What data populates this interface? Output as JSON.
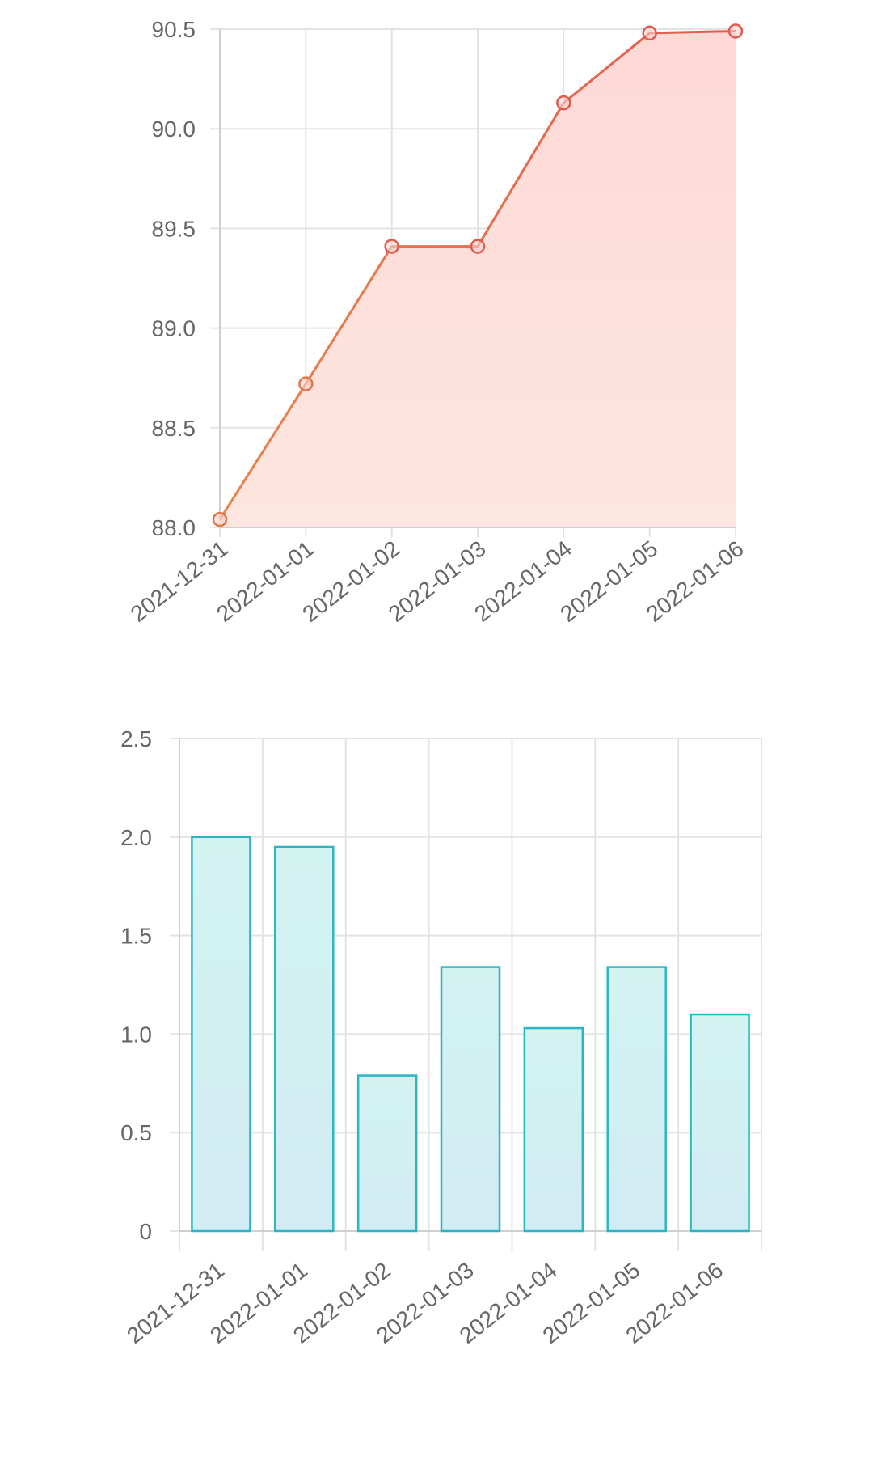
{
  "chart_data": [
    {
      "type": "area",
      "categories": [
        "2021-12-31",
        "2022-01-01",
        "2022-01-02",
        "2022-01-03",
        "2022-01-04",
        "2022-01-05",
        "2022-01-06"
      ],
      "values": [
        88.04,
        88.72,
        89.41,
        89.41,
        90.13,
        90.48,
        90.49
      ],
      "ylim": [
        88.0,
        90.5
      ],
      "yticks": [
        "88.0",
        "88.5",
        "89.0",
        "89.5",
        "90.0",
        "90.5"
      ],
      "title": "",
      "xlabel": "",
      "ylabel": "",
      "grid": true,
      "colors": {
        "line_start": "#e8844a",
        "line_end": "#e05a4e",
        "fill_top": "#fdd9d6",
        "fill_bottom": "#fde6df",
        "marker": "#e05a4e"
      }
    },
    {
      "type": "bar",
      "categories": [
        "2021-12-31",
        "2022-01-01",
        "2022-01-02",
        "2022-01-03",
        "2022-01-04",
        "2022-01-05",
        "2022-01-06"
      ],
      "values": [
        2.0,
        1.95,
        0.79,
        1.34,
        1.03,
        1.34,
        1.1
      ],
      "ylim": [
        0,
        2.5
      ],
      "yticks": [
        "0",
        "0.5",
        "1.0",
        "1.5",
        "2.0",
        "2.5"
      ],
      "title": "",
      "xlabel": "",
      "ylabel": "",
      "grid": true,
      "colors": {
        "bar_fill_top": "#d3f3f1",
        "bar_fill_bottom": "#d1ecf3",
        "bar_stroke": "#2bb5c4"
      }
    }
  ]
}
